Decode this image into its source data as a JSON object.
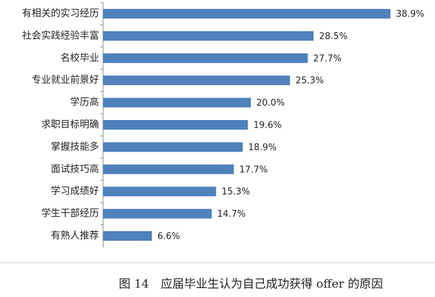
{
  "chart_data": {
    "type": "bar",
    "orientation": "horizontal",
    "caption": "图 14　应届毕业生认为自己成功获得 offer 的原因",
    "categories": [
      "有相关的实习经历",
      "社会实践经验丰富",
      "名校毕业",
      "专业就业前景好",
      "学历高",
      "求职目标明确",
      "掌握技能多",
      "面试技巧高",
      "学习成绩好",
      "学生干部经历",
      "有熟人推荐"
    ],
    "values": [
      38.9,
      28.5,
      27.7,
      25.3,
      20.0,
      19.6,
      18.9,
      17.7,
      15.3,
      14.7,
      6.6
    ],
    "value_labels": [
      "38.9%",
      "28.5%",
      "27.7%",
      "25.3%",
      "20.0%",
      "19.6%",
      "18.9%",
      "17.7%",
      "15.3%",
      "14.7%",
      "6.6%"
    ],
    "color": "#4f81bd"
  }
}
